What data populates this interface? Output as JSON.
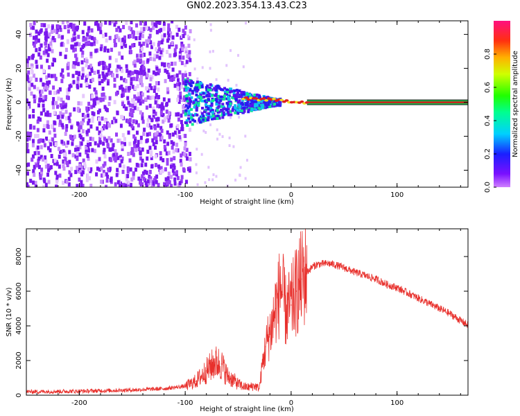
{
  "title": "GN02.2023.354.13.43.C23",
  "colors": {
    "signal_red": "#e8302c",
    "ridge_red": "#d81818",
    "band_green": "#19b84a",
    "purple_noise": "#6a1ee6"
  },
  "chart_data": [
    {
      "type": "heatmap",
      "xlabel": "Height of straight line (km)",
      "ylabel": "Frequency (Hz)",
      "xlim": [
        -250,
        167
      ],
      "ylim": [
        -50,
        48
      ],
      "xticks": [
        -200,
        -100,
        0,
        100
      ],
      "yticks": [
        -40,
        -20,
        0,
        20,
        40
      ],
      "colorbar": {
        "label": "Normalized spectral amplitude",
        "range": [
          0.0,
          1.0
        ],
        "ticks": [
          "0.0",
          "0.2",
          "0.4",
          "0.6",
          "0.8"
        ],
        "colormap": "gist_rainbow"
      },
      "features": {
        "broadband_noise_x_range": [
          -250,
          -95
        ],
        "signal_ridge_start_x": -45,
        "signal_ridge_frequency": 0,
        "steady_band_x_range": [
          15,
          167
        ]
      }
    },
    {
      "type": "line",
      "xlabel": "Height of straight line (km)",
      "ylabel": "SNR (10 * v/v)",
      "xlim": [
        -250,
        167
      ],
      "ylim": [
        0,
        9600
      ],
      "xticks": [
        -200,
        -100,
        0,
        100
      ],
      "yticks": [
        0,
        2000,
        4000,
        6000,
        8000
      ],
      "series": [
        {
          "color": "#e8302c",
          "x": [
            -250,
            -200,
            -150,
            -120,
            -100,
            -90,
            -80,
            -72,
            -66,
            -60,
            -55,
            -50,
            -45,
            -40,
            -35,
            -30,
            -27,
            -24,
            -21,
            -18,
            -15,
            -12,
            -10,
            -8,
            -5,
            0,
            5,
            10,
            15,
            20,
            25,
            30,
            35,
            40,
            45,
            50,
            60,
            70,
            80,
            90,
            100,
            110,
            120,
            130,
            140,
            150,
            160,
            167
          ],
          "values": [
            200,
            230,
            300,
            380,
            520,
            800,
            1400,
            1900,
            1800,
            1100,
            900,
            650,
            500,
            450,
            550,
            400,
            1800,
            2800,
            3500,
            4000,
            5000,
            5500,
            6500,
            5800,
            4800,
            5200,
            6000,
            6700,
            7100,
            7400,
            7550,
            7580,
            7600,
            7550,
            7450,
            7350,
            7100,
            6900,
            6700,
            6400,
            6200,
            5900,
            5600,
            5300,
            5000,
            4700,
            4300,
            4050
          ]
        }
      ]
    }
  ]
}
